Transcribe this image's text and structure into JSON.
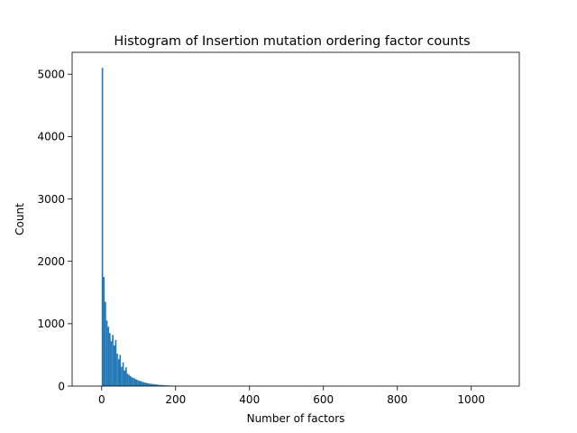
{
  "chart_data": {
    "type": "bar",
    "title": "Histogram of Insertion mutation ordering factor counts",
    "xlabel": "Number of factors",
    "ylabel": "Count",
    "xlim": [
      -80,
      1130
    ],
    "ylim": [
      0,
      5350
    ],
    "xticks": [
      0,
      200,
      400,
      600,
      800,
      1000
    ],
    "yticks": [
      0,
      1000,
      2000,
      3000,
      4000,
      5000
    ],
    "bar_color": "#1f77b4",
    "bin_width": 4,
    "bin_starts": [
      0,
      4,
      8,
      12,
      16,
      20,
      24,
      28,
      32,
      36,
      40,
      44,
      48,
      52,
      56,
      60,
      64,
      68,
      72,
      76,
      80,
      84,
      88,
      92,
      96,
      100,
      104,
      108,
      112,
      116,
      120,
      124,
      128,
      132,
      136,
      140,
      144,
      148,
      152,
      156,
      160,
      164,
      168,
      172,
      176,
      180,
      184,
      188,
      192,
      196,
      200,
      204,
      208,
      212,
      216,
      220,
      224,
      228,
      232
    ],
    "values": [
      5100,
      1750,
      1350,
      1050,
      950,
      850,
      720,
      820,
      650,
      740,
      520,
      430,
      500,
      310,
      380,
      250,
      300,
      200,
      180,
      160,
      140,
      130,
      120,
      105,
      95,
      85,
      78,
      70,
      62,
      55,
      50,
      44,
      40,
      36,
      33,
      30,
      27,
      24,
      22,
      20,
      18,
      16,
      14,
      13,
      12,
      10,
      9,
      8,
      7,
      6,
      6,
      5,
      4,
      4,
      3,
      3,
      2,
      2,
      1
    ]
  }
}
